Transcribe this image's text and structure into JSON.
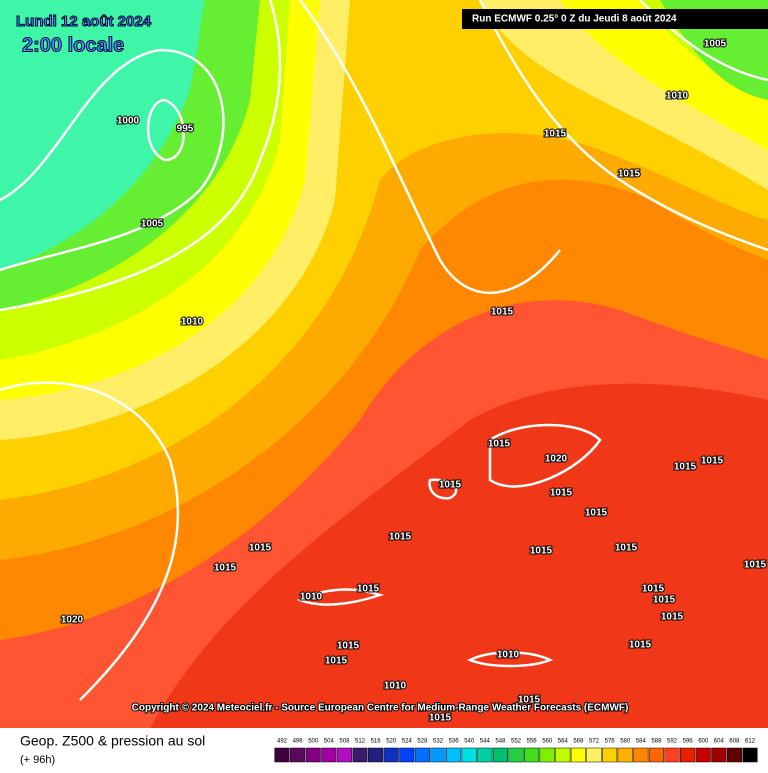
{
  "header": {
    "date": "Lundi 12 août 2024",
    "time": "2:00 locale",
    "run": "Run ECMWF 0.25° 0 Z du Jeudi 8 août 2024"
  },
  "copyright": "Copyright © 2024 Meteociel.fr - Source European Centre for Medium-Range Weather Forecasts (ECMWF)",
  "isobar_labels": [
    1005,
    1010,
    1000,
    995,
    1015,
    1015,
    1005,
    1010,
    1015,
    1015,
    1020,
    1015,
    1015,
    1015,
    1015,
    1015,
    1015,
    1015,
    1015,
    1015,
    1015,
    1015,
    1015,
    1010,
    1015,
    1015,
    1020,
    1015,
    1015,
    1015,
    1010,
    1010,
    1015,
    1015,
    1015
  ],
  "footer": {
    "title": "Geop. Z500 & pression au sol",
    "lead": "(+ 96h)"
  },
  "scale": {
    "labels": [
      492,
      496,
      500,
      504,
      508,
      512,
      516,
      520,
      524,
      528,
      532,
      536,
      540,
      544,
      548,
      552,
      556,
      560,
      564,
      568,
      572,
      576,
      580,
      584,
      588,
      592,
      596,
      600,
      604,
      608,
      612
    ],
    "colors": [
      "#400040",
      "#5a0a5a",
      "#800080",
      "#a000a0",
      "#b010c0",
      "#3a1a6a",
      "#202080",
      "#1030c0",
      "#0040ff",
      "#0070ff",
      "#0099ff",
      "#00c0ff",
      "#00e0e0",
      "#00d0a0",
      "#00c070",
      "#20d040",
      "#40e020",
      "#80f000",
      "#c0ff00",
      "#ffff00",
      "#fff060",
      "#ffd000",
      "#ffb000",
      "#ff8800",
      "#ff6600",
      "#ff4020",
      "#e82000",
      "#c80000",
      "#a00000",
      "#600000",
      "#000000"
    ]
  }
}
